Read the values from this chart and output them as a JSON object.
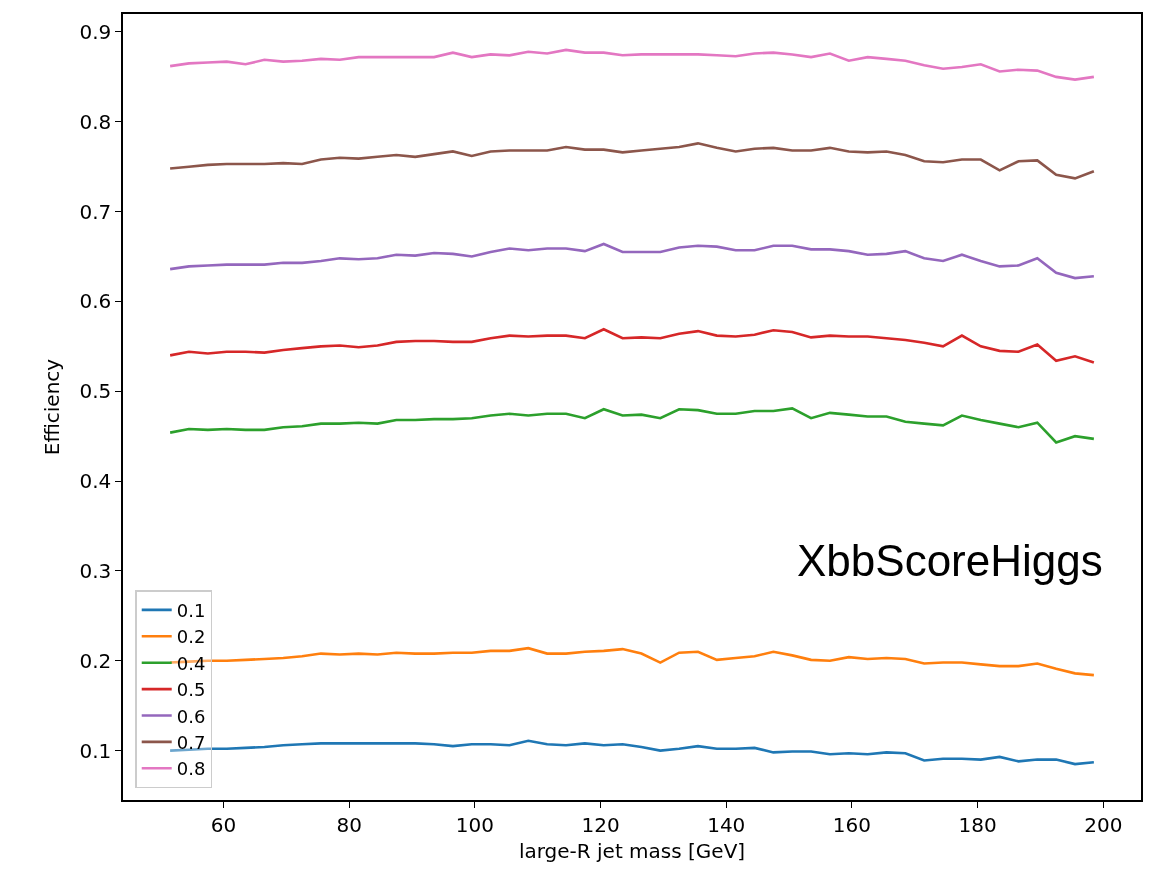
{
  "chart_data": {
    "type": "line",
    "xlabel": "large-R jet mass [GeV]",
    "ylabel": "Efficiency",
    "annotations": [
      "XbbScoreHiggs"
    ],
    "x": [
      51.5,
      54.5,
      57.5,
      60.5,
      63.5,
      66.5,
      69.5,
      72.5,
      75.5,
      78.5,
      81.5,
      84.5,
      87.5,
      90.5,
      93.5,
      96.5,
      99.5,
      102.5,
      105.5,
      108.5,
      111.5,
      114.5,
      117.5,
      120.5,
      123.5,
      126.5,
      129.5,
      132.5,
      135.5,
      138.5,
      141.5,
      144.5,
      147.5,
      150.5,
      153.5,
      156.5,
      159.5,
      162.5,
      165.5,
      168.5,
      171.5,
      174.5,
      177.5,
      180.5,
      183.5,
      186.5,
      189.5,
      192.5,
      195.5,
      198.5
    ],
    "series": [
      {
        "name": "0.1",
        "color": "#1f77b4",
        "values": [
          0.1,
          0.101,
          0.102,
          0.102,
          0.103,
          0.104,
          0.106,
          0.107,
          0.108,
          0.108,
          0.108,
          0.108,
          0.108,
          0.108,
          0.107,
          0.105,
          0.107,
          0.107,
          0.106,
          0.111,
          0.107,
          0.106,
          0.108,
          0.106,
          0.107,
          0.104,
          0.1,
          0.102,
          0.105,
          0.102,
          0.102,
          0.103,
          0.098,
          0.099,
          0.099,
          0.096,
          0.097,
          0.096,
          0.098,
          0.097,
          0.089,
          0.091,
          0.091,
          0.09,
          0.093,
          0.088,
          0.09,
          0.09,
          0.085,
          0.087
        ]
      },
      {
        "name": "0.2",
        "color": "#ff7f0e",
        "values": [
          0.198,
          0.199,
          0.2,
          0.2,
          0.201,
          0.202,
          0.203,
          0.205,
          0.208,
          0.207,
          0.208,
          0.207,
          0.209,
          0.208,
          0.208,
          0.209,
          0.209,
          0.211,
          0.211,
          0.214,
          0.208,
          0.208,
          0.21,
          0.211,
          0.213,
          0.208,
          0.198,
          0.209,
          0.21,
          0.201,
          0.203,
          0.205,
          0.21,
          0.206,
          0.201,
          0.2,
          0.204,
          0.202,
          0.203,
          0.202,
          0.197,
          0.198,
          0.198,
          0.196,
          0.194,
          0.194,
          0.197,
          0.191,
          0.186,
          0.184
        ]
      },
      {
        "name": "0.4",
        "color": "#2ca02c",
        "values": [
          0.454,
          0.458,
          0.457,
          0.458,
          0.457,
          0.457,
          0.46,
          0.461,
          0.464,
          0.464,
          0.465,
          0.464,
          0.468,
          0.468,
          0.469,
          0.469,
          0.47,
          0.473,
          0.475,
          0.473,
          0.475,
          0.475,
          0.47,
          0.48,
          0.473,
          0.474,
          0.47,
          0.48,
          0.479,
          0.475,
          0.475,
          0.478,
          0.478,
          0.481,
          0.47,
          0.476,
          0.474,
          0.472,
          0.472,
          0.466,
          0.464,
          0.462,
          0.473,
          0.468,
          0.464,
          0.46,
          0.465,
          0.443,
          0.45,
          0.447
        ]
      },
      {
        "name": "0.5",
        "color": "#d62728",
        "values": [
          0.54,
          0.544,
          0.542,
          0.544,
          0.544,
          0.543,
          0.546,
          0.548,
          0.55,
          0.551,
          0.549,
          0.551,
          0.555,
          0.556,
          0.556,
          0.555,
          0.555,
          0.559,
          0.562,
          0.561,
          0.562,
          0.562,
          0.559,
          0.569,
          0.559,
          0.56,
          0.559,
          0.564,
          0.567,
          0.562,
          0.561,
          0.563,
          0.568,
          0.566,
          0.56,
          0.562,
          0.561,
          0.561,
          0.559,
          0.557,
          0.554,
          0.55,
          0.562,
          0.55,
          0.545,
          0.544,
          0.552,
          0.534,
          0.539,
          0.532
        ]
      },
      {
        "name": "0.6",
        "color": "#9467bd",
        "values": [
          0.636,
          0.639,
          0.64,
          0.641,
          0.641,
          0.641,
          0.643,
          0.643,
          0.645,
          0.648,
          0.647,
          0.648,
          0.652,
          0.651,
          0.654,
          0.653,
          0.65,
          0.655,
          0.659,
          0.657,
          0.659,
          0.659,
          0.656,
          0.664,
          0.655,
          0.655,
          0.655,
          0.66,
          0.662,
          0.661,
          0.657,
          0.657,
          0.662,
          0.662,
          0.658,
          0.658,
          0.656,
          0.652,
          0.653,
          0.656,
          0.648,
          0.645,
          0.652,
          0.645,
          0.639,
          0.64,
          0.648,
          0.632,
          0.626,
          0.628
        ]
      },
      {
        "name": "0.7",
        "color": "#8c564b",
        "values": [
          0.748,
          0.75,
          0.752,
          0.753,
          0.753,
          0.753,
          0.754,
          0.753,
          0.758,
          0.76,
          0.759,
          0.761,
          0.763,
          0.761,
          0.764,
          0.767,
          0.762,
          0.767,
          0.768,
          0.768,
          0.768,
          0.772,
          0.769,
          0.769,
          0.766,
          0.768,
          0.77,
          0.772,
          0.776,
          0.771,
          0.767,
          0.77,
          0.771,
          0.768,
          0.768,
          0.771,
          0.767,
          0.766,
          0.767,
          0.763,
          0.756,
          0.755,
          0.758,
          0.758,
          0.746,
          0.756,
          0.757,
          0.741,
          0.737,
          0.745
        ]
      },
      {
        "name": "0.8",
        "color": "#e377c2",
        "values": [
          0.862,
          0.865,
          0.866,
          0.867,
          0.864,
          0.869,
          0.867,
          0.868,
          0.87,
          0.869,
          0.872,
          0.872,
          0.872,
          0.872,
          0.872,
          0.877,
          0.872,
          0.875,
          0.874,
          0.878,
          0.876,
          0.88,
          0.877,
          0.877,
          0.874,
          0.875,
          0.875,
          0.875,
          0.875,
          0.874,
          0.873,
          0.876,
          0.877,
          0.875,
          0.872,
          0.876,
          0.868,
          0.872,
          0.87,
          0.868,
          0.863,
          0.859,
          0.861,
          0.864,
          0.856,
          0.858,
          0.857,
          0.85,
          0.847,
          0.85
        ]
      }
    ],
    "xlim": [
      44,
      206
    ],
    "xticks": [
      60,
      80,
      100,
      120,
      140,
      160,
      180,
      200
    ],
    "ylim": [
      0.045,
      0.92
    ],
    "yticks": [
      0.1,
      0.2,
      0.3,
      0.4,
      0.5,
      0.6,
      0.7,
      0.8,
      0.9
    ],
    "grid": false,
    "legend": "bottom left",
    "marker": "none",
    "line_style": "solid"
  }
}
